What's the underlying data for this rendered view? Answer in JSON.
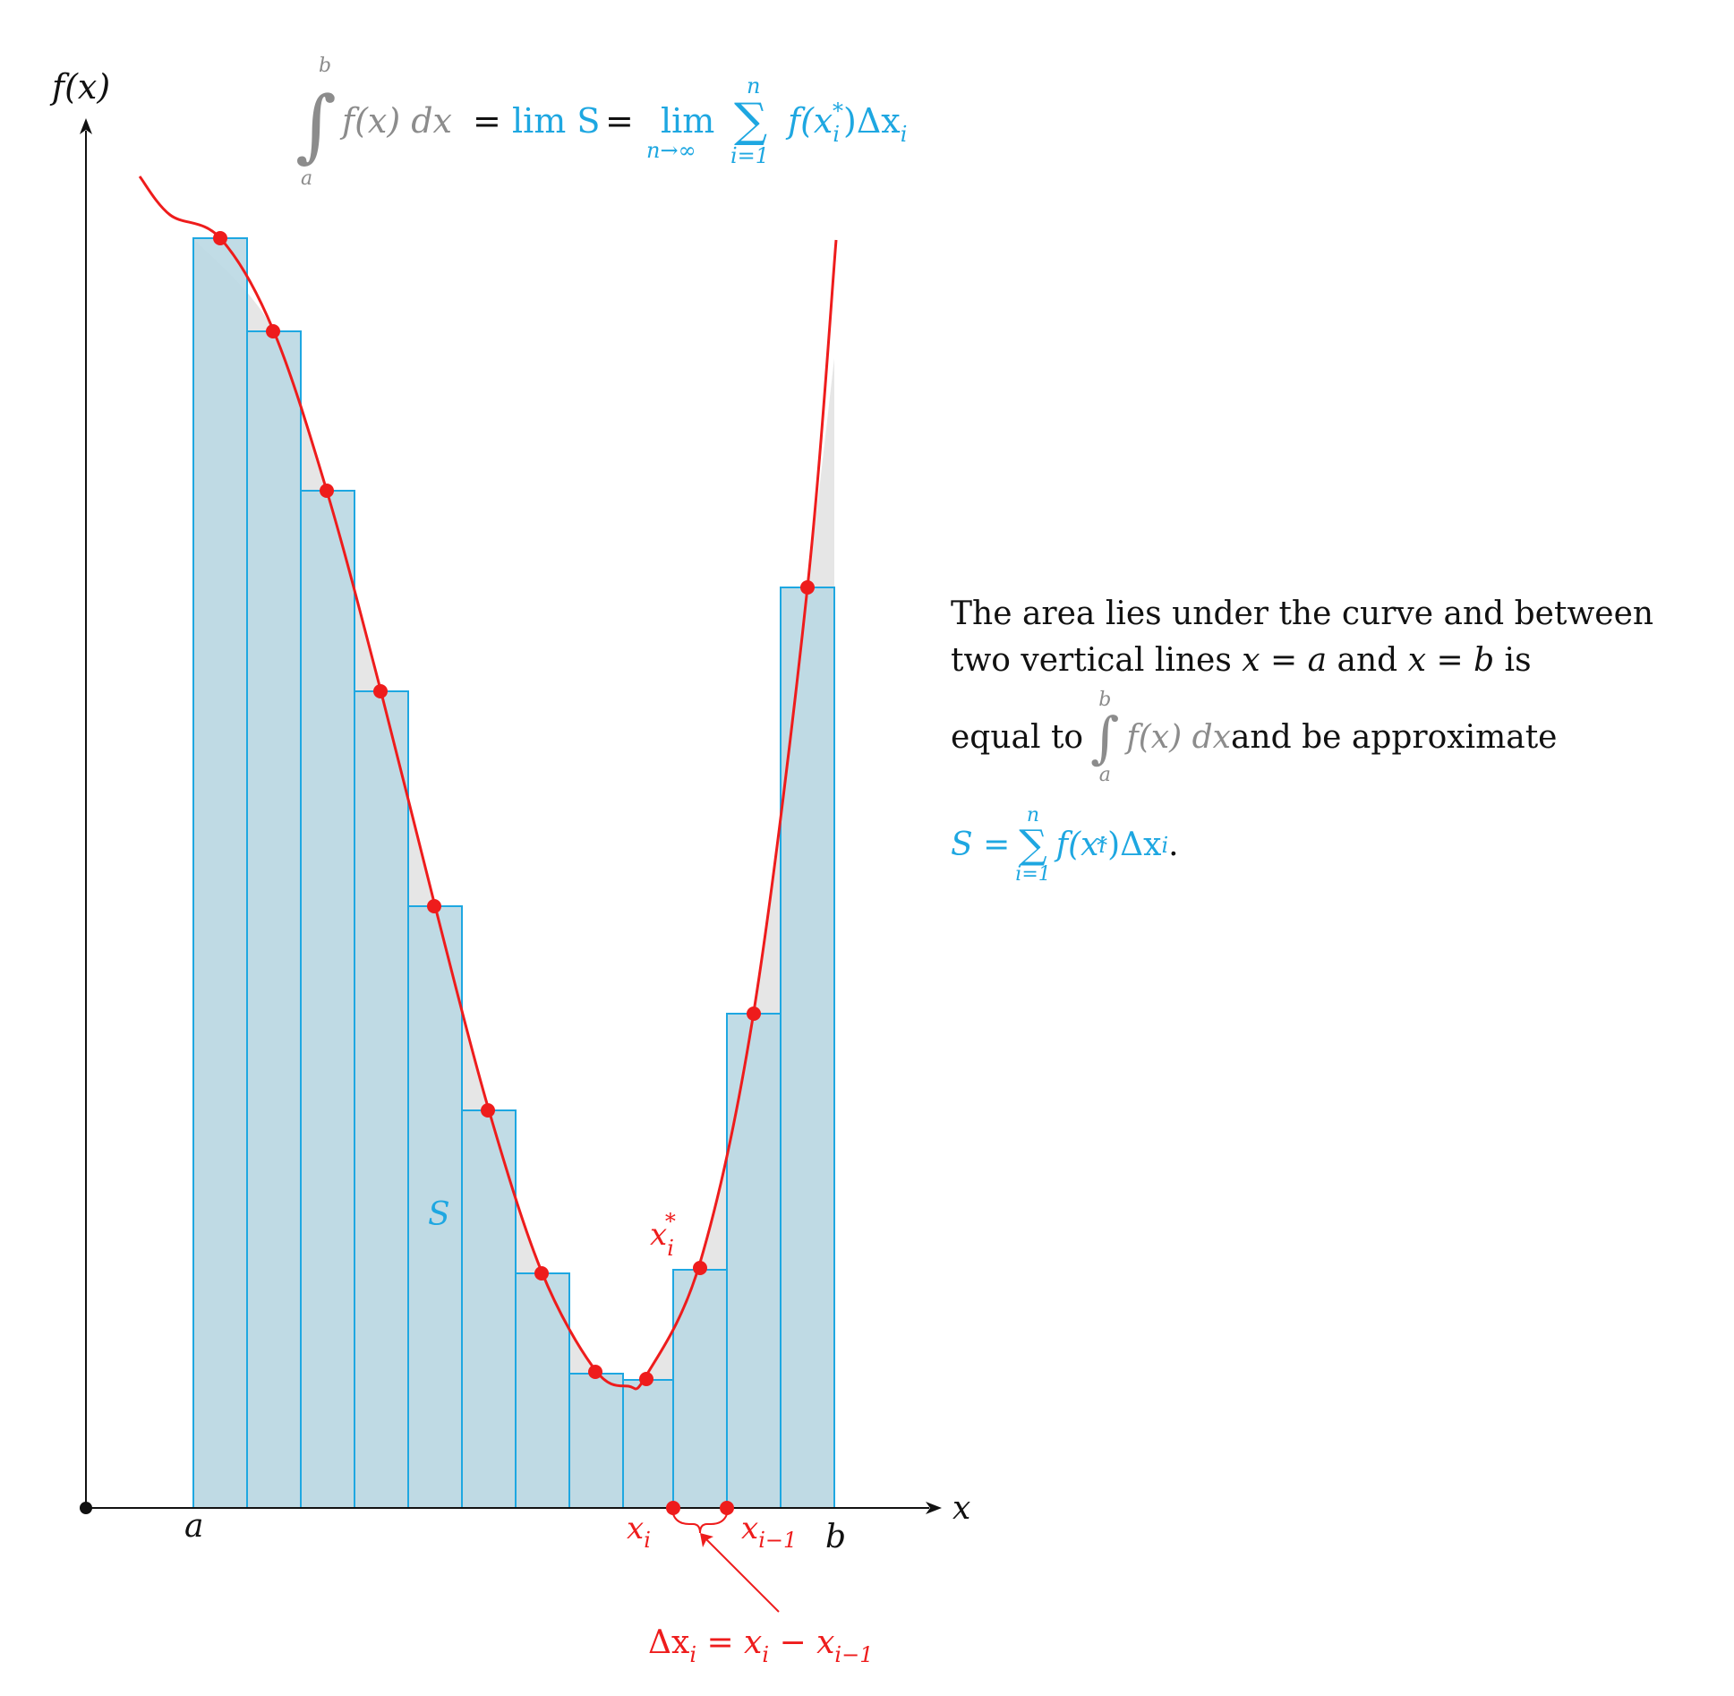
{
  "axes": {
    "y_label": "f(x)",
    "x_label": "x",
    "a_label": "a",
    "b_label": "b"
  },
  "formula": {
    "int_upper": "b",
    "int_lower": "a",
    "integrand": "f(x) dx",
    "eq1": "=",
    "lim_s": "lim S",
    "eq2": "=",
    "lim": "lim",
    "lim_sub": "n→∞",
    "sum_upper": "n",
    "sum_lower": "i=1",
    "summand": "f(x",
    "summand_sub": "i",
    "summand_sup": "*",
    "summand_tail": ")Δx",
    "summand_tail_sub": "i"
  },
  "labels": {
    "S": "S",
    "x_star": "x",
    "x_star_sub": "i",
    "x_star_sup": "*",
    "x_i": "x",
    "x_i_sub": "i",
    "x_im1": "x",
    "x_im1_sub": "i−1",
    "delta_x": "Δx",
    "delta_x_sub": "i",
    "delta_eq": " = x",
    "delta_eq_sub": "i",
    "delta_minus": " − x",
    "delta_minus_sub": "i−1"
  },
  "description": {
    "line1": "The area lies under the curve and between",
    "line2_a": "two vertical lines ",
    "line2_x1": "x",
    "line2_eq1": " = ",
    "line2_a_var": "a",
    "line2_and": " and ",
    "line2_x2": "x",
    "line2_eq2": " = ",
    "line2_b_var": "b",
    "line2_is": " is",
    "line3_a": "equal to ",
    "line3_int_upper": "b",
    "line3_int_lower": "a",
    "line3_integrand": "f(x) dx",
    "line3_b": " and be approximate",
    "line4_S": "S = ",
    "line4_sum_upper": "n",
    "line4_sum_lower": "i=1",
    "line4_summand": "f(x",
    "line4_sub": "i",
    "line4_sup": "*",
    "line4_tail": ")Δx",
    "line4_tail_sub": "i",
    "line4_end": "."
  },
  "colors": {
    "curve": "#ee1c1c",
    "rect_fill": "#bcd9e4",
    "rect_edge": "#1ea7e1",
    "rect_excess": "#c9ecf9",
    "under_curve_gray": "#e6e6e6",
    "formula_gray": "#8c8c8c",
    "formula_blue": "#1ea7e1"
  },
  "icons": {
    "origin": "origin-dot-icon",
    "y_arrow": "arrowhead-up-icon",
    "x_arrow": "arrowhead-right-icon"
  }
}
